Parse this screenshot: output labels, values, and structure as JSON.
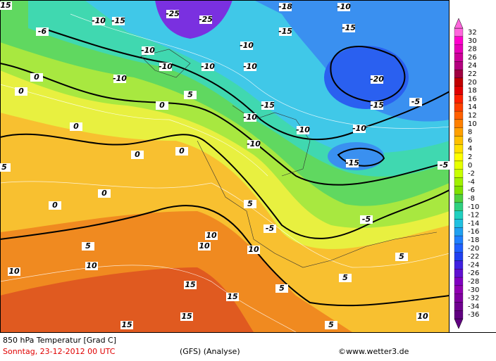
{
  "footer": {
    "title": "850 hPa Temperatur [Grad C]",
    "date": "Sonntag, 23-12-2012  00 UTC",
    "model": "(GFS)  (Analyse)",
    "source": "©www.wetter3.de"
  },
  "colorbar": {
    "levels": [
      32,
      30,
      28,
      26,
      24,
      22,
      20,
      18,
      16,
      14,
      12,
      10,
      8,
      6,
      4,
      2,
      0,
      -2,
      -4,
      -6,
      -8,
      -10,
      -12,
      -14,
      -16,
      -18,
      -20,
      -22,
      -24,
      -26,
      -28,
      -30,
      -32,
      -34,
      -36
    ],
    "colors": [
      "#ff66dd",
      "#ff00cc",
      "#e600b8",
      "#cc0099",
      "#b3007f",
      "#a00040",
      "#c00000",
      "#e00000",
      "#ff2000",
      "#ff4000",
      "#ff6000",
      "#ff8000",
      "#ffa000",
      "#ffc000",
      "#ffe000",
      "#ffff00",
      "#e6ff00",
      "#c8ff00",
      "#a0f000",
      "#80e000",
      "#50d040",
      "#30d080",
      "#20d0c0",
      "#20c0e0",
      "#20a0f0",
      "#2080ff",
      "#2060ff",
      "#2040f0",
      "#4020e0",
      "#6010d0",
      "#8000c0",
      "#9000b0",
      "#8000a0",
      "#700090",
      "#600080"
    ]
  },
  "map_labels": [
    15,
    -6,
    -10,
    -15,
    -25,
    -25,
    -18,
    -10,
    -15,
    -15,
    -10,
    -10,
    -10,
    -10,
    -10,
    -10,
    -20,
    -15,
    -15,
    -10,
    -10,
    -10,
    -15,
    -10,
    0,
    0,
    0,
    0,
    0,
    5,
    5,
    -5,
    -5,
    5,
    10,
    10,
    10,
    10,
    10,
    15,
    15,
    15,
    15,
    5,
    5,
    5,
    5,
    10,
    0,
    5,
    -5,
    -5,
    0,
    0
  ]
}
